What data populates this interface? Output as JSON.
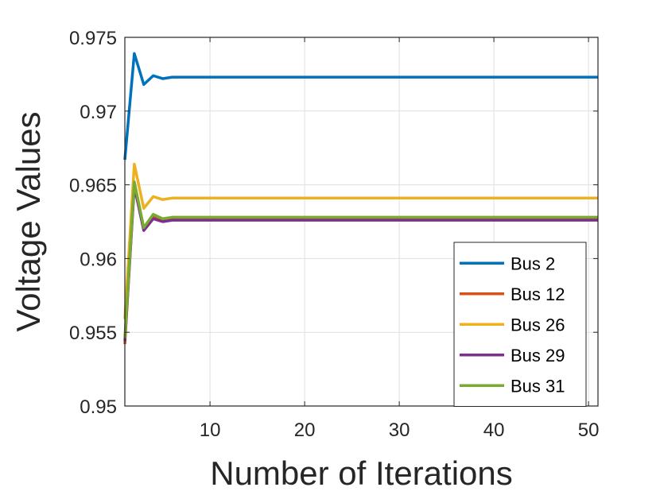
{
  "chart_data": {
    "type": "line",
    "xlabel": "Number of Iterations",
    "ylabel": "Voltage Values",
    "xlim": [
      1,
      51
    ],
    "ylim": [
      0.95,
      0.975
    ],
    "x_ticks": [
      10,
      20,
      30,
      40,
      50
    ],
    "x_tick_labels": [
      "10",
      "20",
      "30",
      "40",
      "50"
    ],
    "y_ticks": [
      0.95,
      0.955,
      0.96,
      0.965,
      0.97,
      0.975
    ],
    "y_tick_labels": [
      "0.95",
      "0.955",
      "0.96",
      "0.965",
      "0.97",
      "0.975"
    ],
    "grid": true,
    "legend_position": "lower-right",
    "series": [
      {
        "name": "Bus 2",
        "color": "#0072BD",
        "points": [
          [
            1,
            0.9667
          ],
          [
            2,
            0.9739
          ],
          [
            3,
            0.9718
          ],
          [
            4,
            0.9724
          ],
          [
            5,
            0.9722
          ],
          [
            6,
            0.9723
          ],
          [
            7,
            0.9723
          ],
          [
            51,
            0.9723
          ]
        ]
      },
      {
        "name": "Bus 12",
        "color": "#D95319",
        "points": [
          [
            1,
            0.9542
          ],
          [
            2,
            0.9651
          ],
          [
            3,
            0.962
          ],
          [
            4,
            0.9628
          ],
          [
            5,
            0.9626
          ],
          [
            6,
            0.9627
          ],
          [
            7,
            0.9627
          ],
          [
            51,
            0.9627
          ]
        ]
      },
      {
        "name": "Bus 26",
        "color": "#EDB120",
        "points": [
          [
            1,
            0.9559
          ],
          [
            2,
            0.9664
          ],
          [
            3,
            0.9634
          ],
          [
            4,
            0.9642
          ],
          [
            5,
            0.964
          ],
          [
            6,
            0.9641
          ],
          [
            7,
            0.9641
          ],
          [
            51,
            0.9641
          ]
        ]
      },
      {
        "name": "Bus 29",
        "color": "#7E2F8E",
        "points": [
          [
            1,
            0.9544
          ],
          [
            2,
            0.9649
          ],
          [
            3,
            0.9619
          ],
          [
            4,
            0.9627
          ],
          [
            5,
            0.9625
          ],
          [
            6,
            0.9626
          ],
          [
            7,
            0.9626
          ],
          [
            51,
            0.9626
          ]
        ]
      },
      {
        "name": "Bus 31",
        "color": "#77AC30",
        "points": [
          [
            1,
            0.9546
          ],
          [
            2,
            0.9652
          ],
          [
            3,
            0.9621
          ],
          [
            4,
            0.963
          ],
          [
            5,
            0.9627
          ],
          [
            6,
            0.9628
          ],
          [
            7,
            0.9628
          ],
          [
            51,
            0.9628
          ]
        ]
      }
    ]
  }
}
